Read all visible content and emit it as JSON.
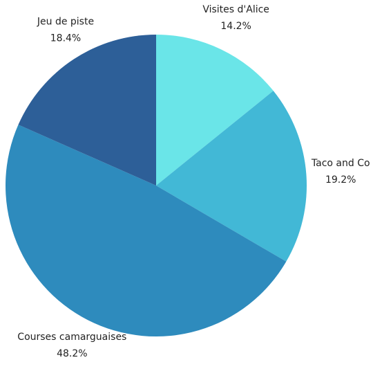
{
  "chart_data": {
    "type": "pie",
    "categories": [
      "Visites d'Alice",
      "Taco and Co",
      "Courses camarguaises",
      "Jeu de piste"
    ],
    "values": [
      14.2,
      19.2,
      48.2,
      18.4
    ],
    "value_labels": [
      "14.2%",
      "19.2%",
      "48.2%",
      "18.4%"
    ],
    "colors": [
      "#6ae5e8",
      "#42b8d6",
      "#2e8bbd",
      "#2d5f98"
    ]
  }
}
